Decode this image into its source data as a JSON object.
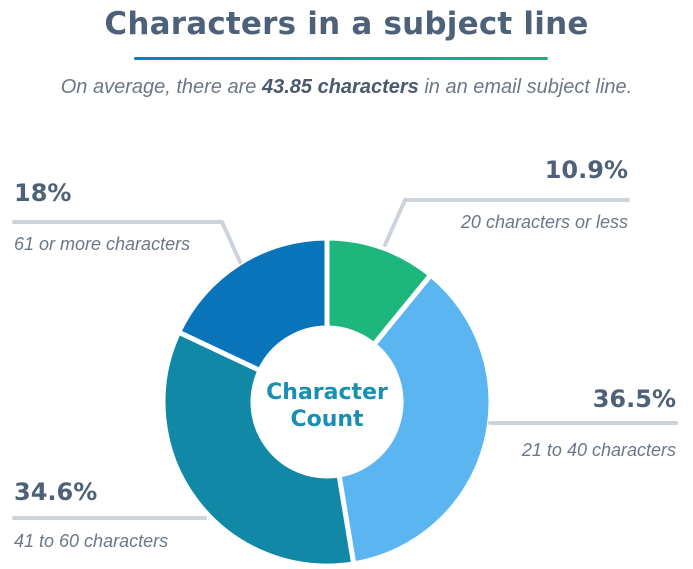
{
  "header": {
    "title": "Characters in a subject line",
    "subtitle_pre": "On average, there are ",
    "subtitle_bold": "43.85 characters",
    "subtitle_post": " in an email subject line."
  },
  "chart_data": {
    "type": "pie",
    "title": "Characters in a subject line",
    "center_label": [
      "Character",
      "Count"
    ],
    "slices": [
      {
        "label": "20 characters or less",
        "value": 10.9,
        "display": "10.9%",
        "color": "#1db67d"
      },
      {
        "label": "21 to 40 characters",
        "value": 36.5,
        "display": "36.5%",
        "color": "#5ab5f0"
      },
      {
        "label": "41 to 60 characters",
        "value": 34.6,
        "display": "34.6%",
        "color": "#1189a6"
      },
      {
        "label": "61 or more characters",
        "value": 18,
        "display": "18%",
        "color": "#0a74bb"
      }
    ]
  },
  "leader_color": "#cdd3da"
}
